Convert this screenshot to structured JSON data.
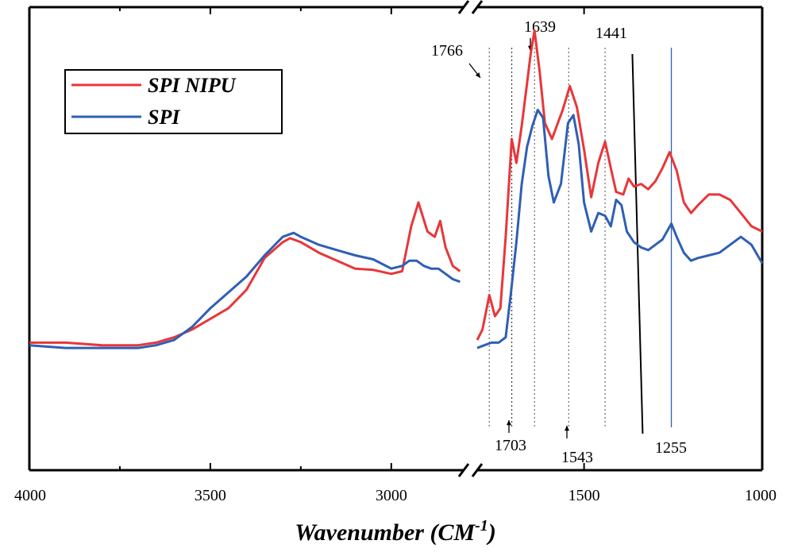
{
  "chart_data": {
    "type": "line",
    "title": "",
    "xlabel": "Wavenumber (CM",
    "xlabel_sup": "-1",
    "xlabel_close": ")",
    "ylabel": "",
    "x_axis": {
      "reversed": true,
      "broken": true,
      "break_between": [
        2800,
        1800
      ],
      "ticks": [
        "4000",
        "3500",
        "3000",
        "1500",
        "1000"
      ],
      "tick_values": [
        4000,
        3500,
        3000,
        1500,
        1000
      ]
    },
    "legend": {
      "position": "top-left",
      "entries": [
        "SPI NIPU",
        "SPI"
      ]
    },
    "series": [
      {
        "name": "SPI NIPU",
        "color": "#e8363a",
        "segments": [
          [
            [
              4000,
              0.2
            ],
            [
              3900,
              0.2
            ],
            [
              3800,
              0.19
            ],
            [
              3700,
              0.19
            ],
            [
              3650,
              0.2
            ],
            [
              3600,
              0.22
            ],
            [
              3550,
              0.25
            ],
            [
              3500,
              0.29
            ],
            [
              3450,
              0.33
            ],
            [
              3400,
              0.4
            ],
            [
              3350,
              0.52
            ],
            [
              3300,
              0.58
            ],
            [
              3280,
              0.595
            ],
            [
              3250,
              0.58
            ],
            [
              3200,
              0.54
            ],
            [
              3150,
              0.51
            ],
            [
              3100,
              0.48
            ],
            [
              3050,
              0.475
            ],
            [
              3000,
              0.46
            ],
            [
              2970,
              0.47
            ],
            [
              2945,
              0.64
            ],
            [
              2925,
              0.73
            ],
            [
              2900,
              0.62
            ],
            [
              2880,
              0.6
            ],
            [
              2865,
              0.66
            ],
            [
              2850,
              0.56
            ],
            [
              2830,
              0.49
            ],
            [
              2810,
              0.47
            ]
          ],
          [
            [
              1800,
              0.21
            ],
            [
              1785,
              0.25
            ],
            [
              1766,
              0.38
            ],
            [
              1750,
              0.3
            ],
            [
              1735,
              0.33
            ],
            [
              1720,
              0.6
            ],
            [
              1703,
              0.97
            ],
            [
              1690,
              0.88
            ],
            [
              1675,
              1.02
            ],
            [
              1660,
              1.18
            ],
            [
              1650,
              1.29
            ],
            [
              1639,
              1.38
            ],
            [
              1625,
              1.23
            ],
            [
              1610,
              1.03
            ],
            [
              1590,
              0.97
            ],
            [
              1560,
              1.08
            ],
            [
              1540,
              1.17
            ],
            [
              1520,
              1.09
            ],
            [
              1500,
              0.93
            ],
            [
              1480,
              0.75
            ],
            [
              1460,
              0.88
            ],
            [
              1441,
              0.96
            ],
            [
              1425,
              0.86
            ],
            [
              1410,
              0.77
            ],
            [
              1390,
              0.76
            ],
            [
              1375,
              0.82
            ],
            [
              1360,
              0.79
            ],
            [
              1340,
              0.8
            ],
            [
              1320,
              0.78
            ],
            [
              1300,
              0.81
            ],
            [
              1280,
              0.86
            ],
            [
              1260,
              0.92
            ],
            [
              1240,
              0.85
            ],
            [
              1220,
              0.73
            ],
            [
              1200,
              0.69
            ],
            [
              1180,
              0.72
            ],
            [
              1150,
              0.76
            ],
            [
              1120,
              0.76
            ],
            [
              1090,
              0.74
            ],
            [
              1060,
              0.69
            ],
            [
              1030,
              0.64
            ],
            [
              1000,
              0.62
            ]
          ]
        ]
      },
      {
        "name": "SPI",
        "color": "#2f5fb4",
        "segments": [
          [
            [
              4000,
              0.19
            ],
            [
              3900,
              0.18
            ],
            [
              3800,
              0.18
            ],
            [
              3700,
              0.18
            ],
            [
              3650,
              0.19
            ],
            [
              3600,
              0.21
            ],
            [
              3550,
              0.26
            ],
            [
              3500,
              0.33
            ],
            [
              3450,
              0.39
            ],
            [
              3400,
              0.45
            ],
            [
              3350,
              0.53
            ],
            [
              3300,
              0.6
            ],
            [
              3270,
              0.615
            ],
            [
              3250,
              0.6
            ],
            [
              3200,
              0.57
            ],
            [
              3150,
              0.55
            ],
            [
              3100,
              0.53
            ],
            [
              3050,
              0.515
            ],
            [
              3000,
              0.48
            ],
            [
              2970,
              0.49
            ],
            [
              2950,
              0.51
            ],
            [
              2930,
              0.51
            ],
            [
              2910,
              0.49
            ],
            [
              2890,
              0.48
            ],
            [
              2870,
              0.48
            ],
            [
              2850,
              0.46
            ],
            [
              2830,
              0.44
            ],
            [
              2810,
              0.43
            ]
          ],
          [
            [
              1800,
              0.18
            ],
            [
              1780,
              0.19
            ],
            [
              1760,
              0.2
            ],
            [
              1740,
              0.2
            ],
            [
              1720,
              0.22
            ],
            [
              1705,
              0.39
            ],
            [
              1690,
              0.58
            ],
            [
              1675,
              0.8
            ],
            [
              1660,
              0.94
            ],
            [
              1645,
              1.02
            ],
            [
              1630,
              1.08
            ],
            [
              1615,
              1.05
            ],
            [
              1600,
              0.83
            ],
            [
              1585,
              0.73
            ],
            [
              1565,
              0.8
            ],
            [
              1545,
              1.03
            ],
            [
              1530,
              1.06
            ],
            [
              1515,
              0.95
            ],
            [
              1500,
              0.73
            ],
            [
              1480,
              0.62
            ],
            [
              1460,
              0.69
            ],
            [
              1441,
              0.68
            ],
            [
              1425,
              0.64
            ],
            [
              1410,
              0.74
            ],
            [
              1395,
              0.72
            ],
            [
              1380,
              0.62
            ],
            [
              1360,
              0.58
            ],
            [
              1340,
              0.56
            ],
            [
              1320,
              0.55
            ],
            [
              1300,
              0.57
            ],
            [
              1280,
              0.59
            ],
            [
              1255,
              0.65
            ],
            [
              1240,
              0.6
            ],
            [
              1220,
              0.54
            ],
            [
              1200,
              0.51
            ],
            [
              1180,
              0.52
            ],
            [
              1150,
              0.53
            ],
            [
              1120,
              0.54
            ],
            [
              1090,
              0.57
            ],
            [
              1060,
              0.6
            ],
            [
              1030,
              0.57
            ],
            [
              1000,
              0.5
            ]
          ]
        ]
      }
    ],
    "annotations": [
      {
        "label": "1766",
        "x": 1766,
        "style": "dotted",
        "color": "#777777",
        "label_pos": "top"
      },
      {
        "label": "1639",
        "x": 1639,
        "style": "dotted",
        "color": "#777777",
        "label_pos": "top"
      },
      {
        "label": "1441",
        "x": 1441,
        "style": "dotted",
        "color": "#777777",
        "label_pos": "top"
      },
      {
        "label": "1703",
        "x": 1703,
        "style": "dotted",
        "color": "#444444",
        "label_pos": "bottom"
      },
      {
        "label": "1543",
        "x": 1543,
        "style": "dotted",
        "color": "#777777",
        "label_pos": "bottom"
      },
      {
        "label": "1255",
        "x": 1255,
        "style": "solid",
        "color": "#2f5fb4",
        "label_pos": "bottom"
      }
    ],
    "reference_line": {
      "x_top": 1360,
      "x_bottom": 1340,
      "color": "#000000"
    }
  }
}
